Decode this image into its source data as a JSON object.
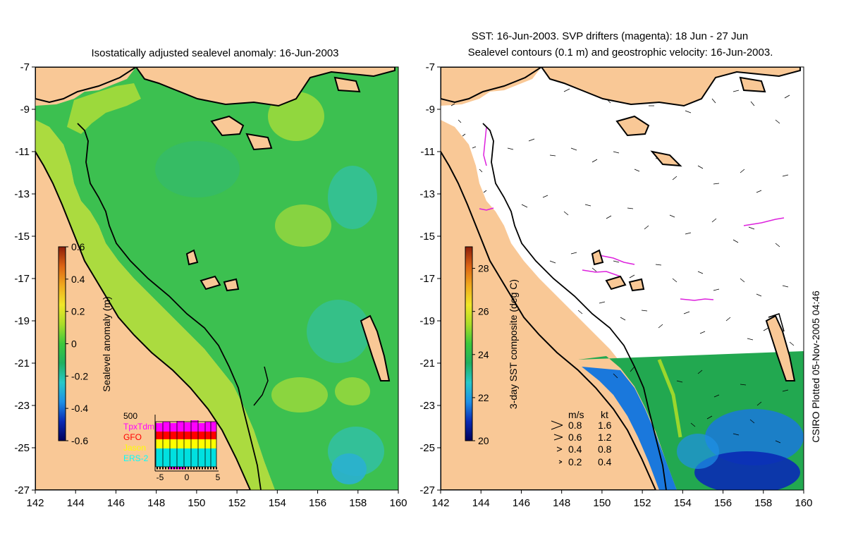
{
  "left_panel": {
    "title": "Isostatically adjusted sealevel anomaly: 16-Jun-2003",
    "colorbar": {
      "label": "Sealevel anomaly (m)",
      "ticks": [
        "0.6",
        "0.4",
        "0.2",
        "0",
        "-0.2",
        "-0.4",
        "-0.6"
      ],
      "range": [
        -0.6,
        0.6
      ],
      "colors": [
        "#00005a",
        "#0a2ab4",
        "#1e90e6",
        "#28c8c8",
        "#20b060",
        "#3cc83c",
        "#aadc28",
        "#f0e628",
        "#f0aa1e",
        "#dc6414",
        "#8c1e0a"
      ]
    },
    "inset": {
      "top_label": "500",
      "legend": [
        {
          "name": "TpxTdm",
          "color": "#ff00ff"
        },
        {
          "name": "GFO",
          "color": "#ff0000"
        },
        {
          "name": "Jason",
          "color": "#ffff00"
        },
        {
          "name": "ERS-2",
          "color": "#00ffff"
        }
      ],
      "x_ticks": [
        "-5",
        "0",
        "5"
      ]
    }
  },
  "right_panel": {
    "title_line1": "SST: 16-Jun-2003. SVP drifters (magenta): 18 Jun - 27 Jun",
    "title_line2": "Sealevel contours (0.1 m) and geostrophic velocity: 16-Jun-2003.",
    "colorbar": {
      "label": "3-day SST composite (deg C)",
      "ticks": [
        "28",
        "26",
        "24",
        "22",
        "20"
      ],
      "range": [
        20,
        29
      ],
      "colors": [
        "#00005a",
        "#0a2ab4",
        "#1e90e6",
        "#28c8c8",
        "#20b060",
        "#3cc83c",
        "#aadc28",
        "#f0e628",
        "#f0aa1e",
        "#dc6414",
        "#8c1e0a"
      ]
    },
    "velocity_legend": {
      "header_ms": "m/s",
      "header_kt": "kt",
      "rows": [
        {
          "ms": "0.8",
          "kt": "1.6"
        },
        {
          "ms": "0.6",
          "kt": "1.2"
        },
        {
          "ms": "0.4",
          "kt": "0.8"
        },
        {
          "ms": "0.2",
          "kt": "0.4"
        }
      ]
    },
    "credit": "CSIRO Plotted 05-Nov-2005 04:46"
  },
  "axes": {
    "x_ticks": [
      "142",
      "144",
      "146",
      "148",
      "150",
      "152",
      "154",
      "156",
      "158",
      "160"
    ],
    "y_ticks": [
      "-7",
      "-9",
      "-11",
      "-13",
      "-15",
      "-17",
      "-19",
      "-21",
      "-23",
      "-25",
      "-27"
    ],
    "lon_range": [
      142,
      160
    ],
    "lat_range": [
      -7,
      -27
    ]
  },
  "colors": {
    "land": "#f9c896",
    "ocean_left": "#3cc050",
    "ocean_left_light": "#a6dc3a",
    "ocean_left_teal": "#32c0a0",
    "sst_mid": "#22a850",
    "sst_cold": "#1a78dc",
    "coast": "#000000",
    "drifter": "#dd22dd"
  }
}
